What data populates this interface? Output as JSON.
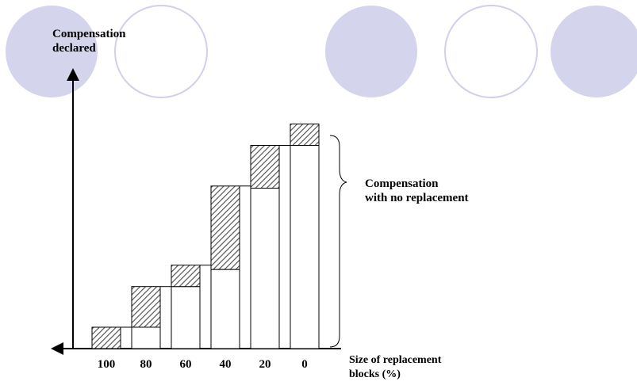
{
  "chart_data": {
    "type": "bar",
    "categories": [
      "100",
      "80",
      "60",
      "40",
      "20",
      "0"
    ],
    "series": [
      {
        "values": [
          0,
          10,
          29,
          37,
          75,
          95
        ]
      },
      {
        "values": [
          10,
          19,
          10,
          39,
          20,
          10
        ]
      }
    ],
    "ylabel": "Compensation\ndeclared",
    "xlabel": "Size of replacement\nblocks (%)",
    "annotation": "Compensation\nwith no replacement",
    "ylim": [
      0,
      100
    ],
    "grid": false,
    "legend": "none"
  },
  "colors": {
    "decor_fill": "#d4d4ec",
    "decor_stroke": "#cfd0ea",
    "hatch": "#555555",
    "axis": "#000000"
  }
}
